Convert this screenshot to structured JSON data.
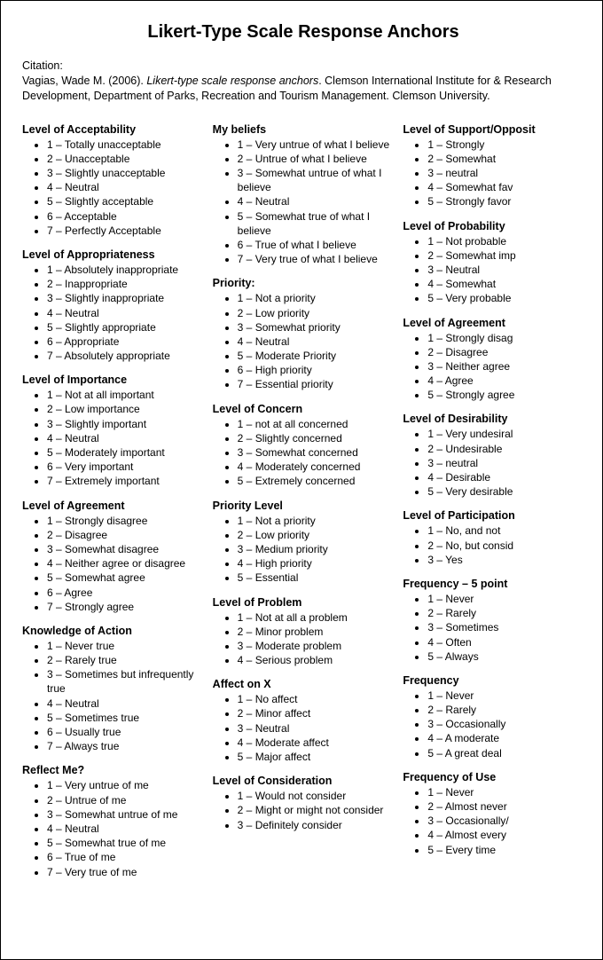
{
  "title": "Likert-Type Scale Response Anchors",
  "citation": {
    "label": "Citation:",
    "author_year": "Vagias, Wade M. (2006). ",
    "work_title": "Likert-type scale response anchors",
    "rest": ".  Clemson International Institute for & Research Development, Department of Parks, Recreation and Tourism Management.  Clemson University."
  },
  "columns": [
    [
      {
        "title": "Level of Acceptability",
        "items": [
          "1 – Totally unacceptable",
          "2 – Unacceptable",
          "3 – Slightly unacceptable",
          "4 – Neutral",
          "5 – Slightly acceptable",
          "6 – Acceptable",
          "7 – Perfectly Acceptable"
        ]
      },
      {
        "title": "Level of Appropriateness",
        "items": [
          "1 – Absolutely inappropriate",
          "2 – Inappropriate",
          "3 – Slightly inappropriate",
          "4 – Neutral",
          "5 – Slightly appropriate",
          "6 – Appropriate",
          "7 – Absolutely appropriate"
        ]
      },
      {
        "title": "Level of Importance",
        "items": [
          "1 – Not at all important",
          "2 – Low importance",
          "3 – Slightly important",
          "4 – Neutral",
          "5 – Moderately important",
          "6 – Very important",
          "7 – Extremely important"
        ]
      },
      {
        "title": "Level of Agreement",
        "items": [
          "1 – Strongly disagree",
          "2 – Disagree",
          "3 – Somewhat disagree",
          "4 – Neither agree or disagree",
          "5 – Somewhat agree",
          "6 – Agree",
          "7 – Strongly agree"
        ]
      },
      {
        "title": "Knowledge of Action",
        "items": [
          "1 – Never true",
          "2 – Rarely true",
          "3 – Sometimes but infrequently true",
          "4 – Neutral",
          "5 – Sometimes true",
          "6 – Usually true",
          "7 – Always true"
        ]
      },
      {
        "title": "Reflect Me?",
        "items": [
          "1 – Very untrue of me",
          "2 – Untrue of me",
          "3 – Somewhat untrue of me",
          "4 – Neutral",
          "5 – Somewhat true of me",
          "6 – True of me",
          "7 – Very true of me"
        ]
      }
    ],
    [
      {
        "title": "My beliefs",
        "items": [
          "1 – Very untrue of what I believe",
          "2 – Untrue of what I believe",
          "3 – Somewhat untrue of what I believe",
          "4 – Neutral",
          "5 – Somewhat true of what I believe",
          "6 – True of what I believe",
          "7 – Very true of what I believe"
        ]
      },
      {
        "title": "Priority:",
        "items": [
          "1 – Not a priority",
          "2 – Low priority",
          "3 – Somewhat priority",
          "4 – Neutral",
          "5 – Moderate Priority",
          "6 – High priority",
          "7 – Essential priority"
        ]
      },
      {
        "title": "Level of Concern",
        "items": [
          "1 – not at all concerned",
          "2 – Slightly concerned",
          "3 – Somewhat concerned",
          "4 – Moderately concerned",
          "5 – Extremely concerned"
        ]
      },
      {
        "title": "Priority Level",
        "items": [
          "1 – Not a priority",
          "2 – Low priority",
          "3 – Medium priority",
          "4 – High priority",
          "5 – Essential"
        ]
      },
      {
        "title": "Level of Problem",
        "items": [
          "1 – Not at all a problem",
          "2 – Minor problem",
          "3 – Moderate problem",
          "4 – Serious problem"
        ]
      },
      {
        "title": "Affect on X",
        "items": [
          "1 – No affect",
          "2 – Minor affect",
          "3 – Neutral",
          "4 – Moderate affect",
          "5 – Major affect"
        ]
      },
      {
        "title": "Level of Consideration",
        "items": [
          "1 – Would not consider",
          "2 – Might or might not consider",
          "3 – Definitely consider"
        ]
      }
    ],
    [
      {
        "title": "Level of Support/Opposit",
        "items": [
          "1 – Strongly",
          "2 – Somewhat",
          "3 – neutral",
          "4 – Somewhat fav",
          "5 – Strongly favor"
        ]
      },
      {
        "title": "Level of Probability",
        "items": [
          "1 – Not probable",
          "2 – Somewhat imp",
          "3 – Neutral",
          "4 – Somewhat",
          "5 – Very probable"
        ]
      },
      {
        "title": "Level of Agreement",
        "items": [
          "1 – Strongly disag",
          "2 – Disagree",
          "3 – Neither agree",
          "4 – Agree",
          "5 – Strongly agree"
        ]
      },
      {
        "title": "Level of Desirability",
        "items": [
          "1 – Very undesiral",
          "2 – Undesirable",
          "3 – neutral",
          "4 – Desirable",
          "5 – Very desirable"
        ]
      },
      {
        "title": "Level of Participation",
        "items": [
          "1 – No, and not",
          "2 – No, but consid",
          "3 – Yes"
        ]
      },
      {
        "title": "Frequency – 5 point",
        "items": [
          "1 – Never",
          "2 – Rarely",
          "3 – Sometimes",
          "4 – Often",
          "5 – Always"
        ]
      },
      {
        "title": "Frequency",
        "items": [
          "1 – Never",
          "2 – Rarely",
          "3 – Occasionally",
          "4 – A moderate",
          "5 – A great deal"
        ]
      },
      {
        "title": "Frequency of Use",
        "items": [
          "1 – Never",
          "2 – Almost never",
          "3 – Occasionally/",
          "4 – Almost every",
          "5 – Every time"
        ]
      }
    ]
  ]
}
